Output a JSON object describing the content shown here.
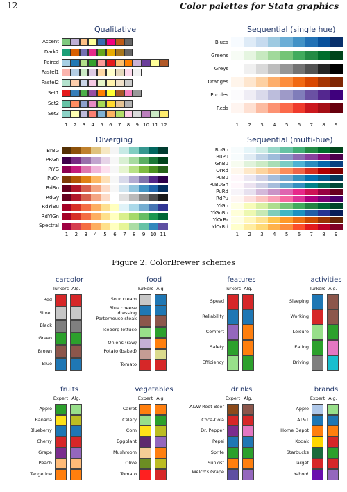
{
  "header": {
    "page_number": "12",
    "running_title": "Color palettes for Stata graphics"
  },
  "figure": {
    "caption": "Figure 2: ColorBrewer schemes",
    "qualitative": {
      "title": "Qualitative",
      "rows": [
        {
          "name": "Accent",
          "colors": [
            "#7fc97f",
            "#beaed4",
            "#fdc086",
            "#ffff99",
            "#386cb0",
            "#f0027f",
            "#bf5b17",
            "#666666"
          ]
        },
        {
          "name": "Dark2",
          "colors": [
            "#1b9e77",
            "#d95f02",
            "#7570b3",
            "#e7298a",
            "#66a61e",
            "#e6ab02",
            "#a6761d",
            "#666666"
          ]
        },
        {
          "name": "Paired",
          "colors": [
            "#a6cee3",
            "#1f78b4",
            "#b2df8a",
            "#33a02c",
            "#fb9a99",
            "#e31a1c",
            "#fdbf6f",
            "#ff7f00",
            "#cab2d6",
            "#6a3d9a",
            "#ffff99",
            "#b15928"
          ]
        },
        {
          "name": "Pastel1",
          "colors": [
            "#fbb4ae",
            "#b3cde3",
            "#ccebc5",
            "#decbe4",
            "#fed9a6",
            "#ffffcc",
            "#e5d8bd",
            "#fddaec",
            "#f2f2f2"
          ]
        },
        {
          "name": "Pastel2",
          "colors": [
            "#b3e2cd",
            "#fdcdac",
            "#cbd5e8",
            "#f4cae4",
            "#e6f5c9",
            "#fff2ae",
            "#f1e2cc",
            "#cccccc"
          ]
        },
        {
          "name": "Set1",
          "colors": [
            "#e41a1c",
            "#377eb8",
            "#4daf4a",
            "#984ea3",
            "#ff7f00",
            "#ffff33",
            "#a65628",
            "#f781bf",
            "#999999"
          ]
        },
        {
          "name": "Set2",
          "colors": [
            "#66c2a5",
            "#fc8d62",
            "#8da0cb",
            "#e78ac3",
            "#a6d854",
            "#ffd92f",
            "#e5c494",
            "#b3b3b3"
          ]
        },
        {
          "name": "Set3",
          "colors": [
            "#8dd3c7",
            "#ffffb3",
            "#bebada",
            "#fb8072",
            "#80b1d3",
            "#fdb462",
            "#b3de69",
            "#fccde5",
            "#d9d9d9",
            "#bc80bd",
            "#ccebc5",
            "#ffed6f"
          ]
        }
      ],
      "ticks": [
        "1",
        "2",
        "3",
        "4",
        "5",
        "6",
        "7",
        "8",
        "9",
        "10",
        "11",
        "12"
      ]
    },
    "sequential_single": {
      "title": "Sequential (single hue)",
      "rows": [
        {
          "name": "Blues",
          "colors": [
            "#f7fbff",
            "#deebf7",
            "#c6dbef",
            "#9ecae1",
            "#6baed6",
            "#4292c6",
            "#2171b5",
            "#08519c",
            "#08306b"
          ]
        },
        {
          "name": "Greens",
          "colors": [
            "#f7fcf5",
            "#e5f5e0",
            "#c7e9c0",
            "#a1d99b",
            "#74c476",
            "#41ab5d",
            "#238b45",
            "#006d2c",
            "#00441b"
          ]
        },
        {
          "name": "Greys",
          "colors": [
            "#ffffff",
            "#f0f0f0",
            "#d9d9d9",
            "#bdbdbd",
            "#969696",
            "#737373",
            "#525252",
            "#252525",
            "#000000"
          ]
        },
        {
          "name": "Oranges",
          "colors": [
            "#fff5eb",
            "#fee6ce",
            "#fdd0a2",
            "#fdae6b",
            "#fd8d3c",
            "#f16913",
            "#d94801",
            "#a63603",
            "#7f2704"
          ]
        },
        {
          "name": "Purples",
          "colors": [
            "#fcfbfd",
            "#efedf5",
            "#dadaeb",
            "#bcbddc",
            "#9e9ac8",
            "#807dba",
            "#6a51a3",
            "#54278f",
            "#3f007d"
          ]
        },
        {
          "name": "Reds",
          "colors": [
            "#fff5f0",
            "#fee0d2",
            "#fcbba1",
            "#fc9272",
            "#fb6a4a",
            "#ef3b2c",
            "#cb181d",
            "#a50f15",
            "#67000d"
          ]
        }
      ],
      "ticks": [
        "1",
        "2",
        "3",
        "4",
        "5",
        "6",
        "7",
        "8",
        "9"
      ]
    },
    "diverging": {
      "title": "Diverging",
      "rows": [
        {
          "name": "BrBG",
          "colors": [
            "#543005",
            "#8c510a",
            "#bf812d",
            "#dfc27d",
            "#f6e8c3",
            "#f5f5f5",
            "#c7eae5",
            "#80cdc1",
            "#35978f",
            "#01665e",
            "#003c30"
          ]
        },
        {
          "name": "PRGn",
          "colors": [
            "#40004b",
            "#762a83",
            "#9970ab",
            "#c2a5cf",
            "#e7d4e8",
            "#f7f7f7",
            "#d9f0d3",
            "#a6dba0",
            "#5aae61",
            "#1b7837",
            "#00441b"
          ]
        },
        {
          "name": "PiYG",
          "colors": [
            "#8e0152",
            "#c51b7d",
            "#de77ae",
            "#f1b6da",
            "#fde0ef",
            "#f7f7f7",
            "#e6f5d0",
            "#b8e186",
            "#7fbc41",
            "#4d9221",
            "#276419"
          ]
        },
        {
          "name": "PuOr",
          "colors": [
            "#7f3b08",
            "#b35806",
            "#e08214",
            "#fdb863",
            "#fee0b6",
            "#f7f7f7",
            "#d8daeb",
            "#b2abd2",
            "#8073ac",
            "#542788",
            "#2d004b"
          ]
        },
        {
          "name": "RdBu",
          "colors": [
            "#67001f",
            "#b2182b",
            "#d6604d",
            "#f4a582",
            "#fddbc7",
            "#f7f7f7",
            "#d1e5f0",
            "#92c5de",
            "#4393c3",
            "#2166ac",
            "#053061"
          ]
        },
        {
          "name": "RdGy",
          "colors": [
            "#67001f",
            "#b2182b",
            "#d6604d",
            "#f4a582",
            "#fddbc7",
            "#ffffff",
            "#e0e0e0",
            "#bababa",
            "#878787",
            "#4d4d4d",
            "#1a1a1a"
          ]
        },
        {
          "name": "RdYlBu",
          "colors": [
            "#a50026",
            "#d73027",
            "#f46d43",
            "#fdae61",
            "#fee090",
            "#ffffbf",
            "#e0f3f8",
            "#abd9e9",
            "#74add1",
            "#4575b4",
            "#313695"
          ]
        },
        {
          "name": "RdYlGn",
          "colors": [
            "#a50026",
            "#d73027",
            "#f46d43",
            "#fdae61",
            "#fee08b",
            "#ffffbf",
            "#d9ef8b",
            "#a6d96a",
            "#66bd63",
            "#1a9850",
            "#006837"
          ]
        },
        {
          "name": "Spectral",
          "colors": [
            "#9e0142",
            "#d53e4f",
            "#f46d43",
            "#fdae61",
            "#fee08b",
            "#ffffbf",
            "#e6f598",
            "#abdda4",
            "#66c2a5",
            "#3288bd",
            "#5e4fa2"
          ]
        }
      ],
      "ticks": [
        "1",
        "2",
        "3",
        "4",
        "5",
        "6",
        "7",
        "8",
        "9",
        "10",
        "11"
      ]
    },
    "sequential_multi": {
      "title": "Sequential (multi-hue)",
      "rows": [
        {
          "name": "BuGn",
          "colors": [
            "#f7fcfd",
            "#e5f5f9",
            "#ccece6",
            "#99d8c9",
            "#66c2a4",
            "#41ae76",
            "#238b45",
            "#006d2c",
            "#00441b"
          ]
        },
        {
          "name": "BuPu",
          "colors": [
            "#f7fcfd",
            "#e0ecf4",
            "#bfd3e6",
            "#9ebcda",
            "#8c96c6",
            "#8c6bb1",
            "#88419d",
            "#810f7c",
            "#4d004b"
          ]
        },
        {
          "name": "GnBu",
          "colors": [
            "#f7fcf0",
            "#e0f3db",
            "#ccebc5",
            "#a8ddb5",
            "#7bccc4",
            "#4eb3d3",
            "#2b8cbe",
            "#0868ac",
            "#084081"
          ]
        },
        {
          "name": "OrRd",
          "colors": [
            "#fff7ec",
            "#fee8c8",
            "#fdd49e",
            "#fdbb84",
            "#fc8d59",
            "#ef6548",
            "#d7301f",
            "#b30000",
            "#7f0000"
          ]
        },
        {
          "name": "PuBu",
          "colors": [
            "#fff7fb",
            "#ece7f2",
            "#d0d1e6",
            "#a6bddb",
            "#74a9cf",
            "#3690c0",
            "#0570b0",
            "#045a8d",
            "#023858"
          ]
        },
        {
          "name": "PuBuGn",
          "colors": [
            "#fff7fb",
            "#ece2f0",
            "#d0d1e6",
            "#a6bddb",
            "#67a9cf",
            "#3690c0",
            "#02818a",
            "#016c59",
            "#014636"
          ]
        },
        {
          "name": "PuRd",
          "colors": [
            "#f7f4f9",
            "#e7e1ef",
            "#d4b9da",
            "#c994c7",
            "#df65b0",
            "#e7298a",
            "#ce1256",
            "#980043",
            "#67001f"
          ]
        },
        {
          "name": "RdPu",
          "colors": [
            "#fff7f3",
            "#fde0dd",
            "#fcc5c0",
            "#fa9fb5",
            "#f768a1",
            "#dd3497",
            "#ae017e",
            "#7a0177",
            "#49006a"
          ]
        },
        {
          "name": "YlGn",
          "colors": [
            "#ffffe5",
            "#f7fcb9",
            "#d9f0a3",
            "#addd8e",
            "#78c679",
            "#41ab5d",
            "#238443",
            "#006837",
            "#004529"
          ]
        },
        {
          "name": "YlGnBu",
          "colors": [
            "#ffffd9",
            "#edf8b1",
            "#c7e9b4",
            "#7fcdbb",
            "#41b6c4",
            "#1d91c0",
            "#225ea8",
            "#253494",
            "#081d58"
          ]
        },
        {
          "name": "YlOrBr",
          "colors": [
            "#ffffe5",
            "#fff7bc",
            "#fee391",
            "#fec44f",
            "#fe9929",
            "#ec7014",
            "#cc4c02",
            "#993404",
            "#662506"
          ]
        },
        {
          "name": "YlOrRd",
          "colors": [
            "#ffffcc",
            "#ffeda0",
            "#fed976",
            "#feb24c",
            "#fd8d3c",
            "#fc4e2a",
            "#e31a1c",
            "#bd0026",
            "#800026"
          ]
        }
      ],
      "ticks": [
        "1",
        "2",
        "3",
        "4",
        "5",
        "6",
        "7",
        "8",
        "9"
      ]
    }
  },
  "small_panels": [
    {
      "title": "carcolor",
      "cols": [
        "Turkers",
        "Alg."
      ],
      "labels": [
        "Red",
        "Silver",
        "Black",
        "Green",
        "Brown",
        "Blue"
      ],
      "left": [
        "#d62728",
        "#c7c7c7",
        "#7f7f7f",
        "#2ca02c",
        "#8c564b",
        "#1f77b4"
      ],
      "right": [
        "#d62728",
        "#c7c7c7",
        "#7f7f7f",
        "#2ca02c",
        "#8c564b",
        "#1f77b4"
      ]
    },
    {
      "title": "food",
      "cols": [
        "Turkers",
        "Alg."
      ],
      "labels": [
        "Sour cream",
        "Blue cheese dressing",
        "Porterhouse steak",
        "Iceberg lettuce",
        "Onions (raw)",
        "Potato (baked)",
        "Tomato"
      ],
      "left": [
        "#c7c7c7",
        "#1f77b4",
        "#8c564b",
        "#98df8a",
        "#c5b0d5",
        "#c49c94",
        "#d62728"
      ],
      "right": [
        "#1f77b4",
        "#1f77b4",
        "#8c564b",
        "#2ca02c",
        "#ff7f0e",
        "#dbdb8d",
        "#d62728"
      ]
    },
    {
      "title": "features",
      "cols": [
        "Turkers",
        "Alg."
      ],
      "labels": [
        "Speed",
        "Reliability",
        "Comfort",
        "Safety",
        "Efficiency"
      ],
      "left": [
        "#d62728",
        "#1f77b4",
        "#9467bd",
        "#2ca02c",
        "#98df8a"
      ],
      "right": [
        "#d62728",
        "#1f77b4",
        "#ff7f0e",
        "#ff7f0e",
        "#2ca02c"
      ]
    },
    {
      "title": "activities",
      "cols": [
        "Turkers",
        "Alg."
      ],
      "labels": [
        "Sleeping",
        "Working",
        "Leisure",
        "Eating",
        "Driving"
      ],
      "left": [
        "#1f77b4",
        "#d62728",
        "#98df8a",
        "#2ca02c",
        "#7f7f7f"
      ],
      "right": [
        "#8c564b",
        "#8c564b",
        "#2ca02c",
        "#e377c2",
        "#17becf"
      ]
    },
    {
      "title": "fruits",
      "cols": [
        "Expert",
        "Alg."
      ],
      "labels": [
        "Apple",
        "Banana",
        "Blueberry",
        "Cherry",
        "Grape",
        "Peach",
        "Tangerine"
      ],
      "left": [
        "#2ca02c",
        "#ffe119",
        "#1f77b4",
        "#d62728",
        "#7b2d8e",
        "#ffbb78",
        "#ff7f0e"
      ],
      "right": [
        "#98df8a",
        "#bcbd22",
        "#1f77b4",
        "#d62728",
        "#9467bd",
        "#ffbb78",
        "#ff7f0e"
      ]
    },
    {
      "title": "vegetables",
      "cols": [
        "Expert",
        "Alg."
      ],
      "labels": [
        "Carrot",
        "Celery",
        "Corn",
        "Eggplant",
        "Mushroom",
        "Olive",
        "Tomato"
      ],
      "left": [
        "#ff7f0e",
        "#98df8a",
        "#ffe119",
        "#5e2a6e",
        "#f5cd95",
        "#6b8e23",
        "#ff2020"
      ],
      "right": [
        "#ff7f0e",
        "#2ca02c",
        "#bcbd22",
        "#9467bd",
        "#ff7f0e",
        "#bcbd22",
        "#d62728"
      ]
    },
    {
      "title": "drinks",
      "cols": [
        "Expert",
        "Alg."
      ],
      "labels": [
        "A&W Root Beer",
        "Coca-Cola",
        "Dr. Pepper",
        "Pepsi",
        "Sprite",
        "Sunkist",
        "Welch's Grape"
      ],
      "left": [
        "#8c4a1a",
        "#d62728",
        "#7b2d8e",
        "#1f77b4",
        "#2ca02c",
        "#ff7f0e",
        "#5e4fa2"
      ],
      "right": [
        "#8c564b",
        "#d62728",
        "#e377c2",
        "#1f77b4",
        "#2ca02c",
        "#ff7f0e",
        "#9467bd"
      ]
    },
    {
      "title": "brands",
      "cols": [
        "Expert",
        "Alg."
      ],
      "labels": [
        "Apple",
        "AT&T",
        "Home Depot",
        "Kodak",
        "Starbucks",
        "Target",
        "Yahoo!"
      ],
      "left": [
        "#aec7e8",
        "#1f77b4",
        "#ff7f0e",
        "#ffd700",
        "#1a6b3c",
        "#d62728",
        "#6a0dad"
      ],
      "right": [
        "#98df8a",
        "#1f77b4",
        "#ff7f0e",
        "#d62728",
        "#2ca02c",
        "#d62728",
        "#9467bd"
      ]
    }
  ]
}
